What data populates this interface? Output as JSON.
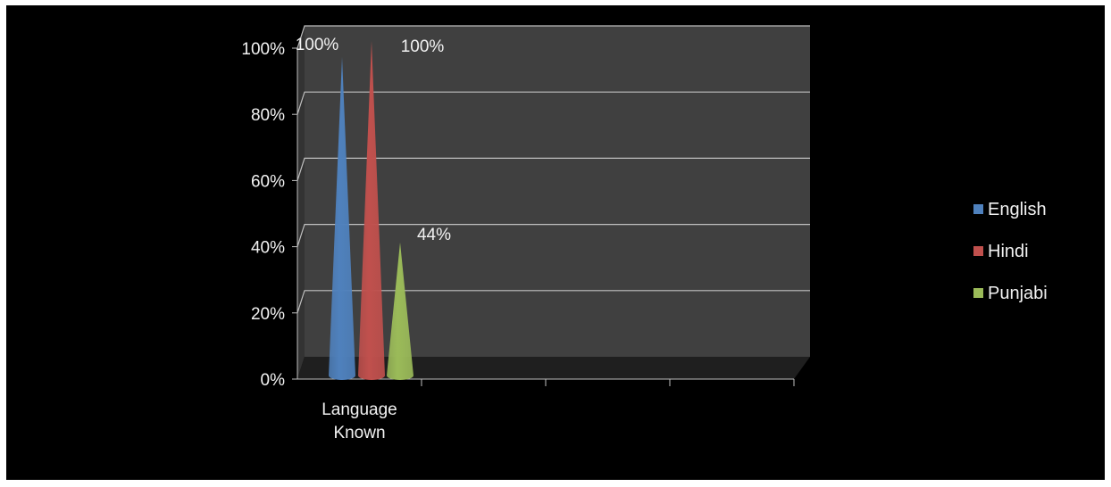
{
  "chart_data": {
    "type": "bar",
    "shape": "cone",
    "categories": [
      "Language Known"
    ],
    "series": [
      {
        "name": "English",
        "values": [
          100
        ],
        "label": "100%",
        "color": "#4f81bd"
      },
      {
        "name": "Hindi",
        "values": [
          100
        ],
        "label": "100%",
        "color": "#c0504d"
      },
      {
        "name": "Punjabi",
        "values": [
          44
        ],
        "label": "44%",
        "color": "#9bbb59"
      }
    ],
    "yticks": [
      "0%",
      "20%",
      "40%",
      "60%",
      "80%",
      "100%"
    ],
    "ylim": [
      0,
      100
    ],
    "grid": true,
    "legend_position": "right",
    "background": "#000000",
    "wall_color": "#404040",
    "text_color": "#f2f2f2"
  }
}
